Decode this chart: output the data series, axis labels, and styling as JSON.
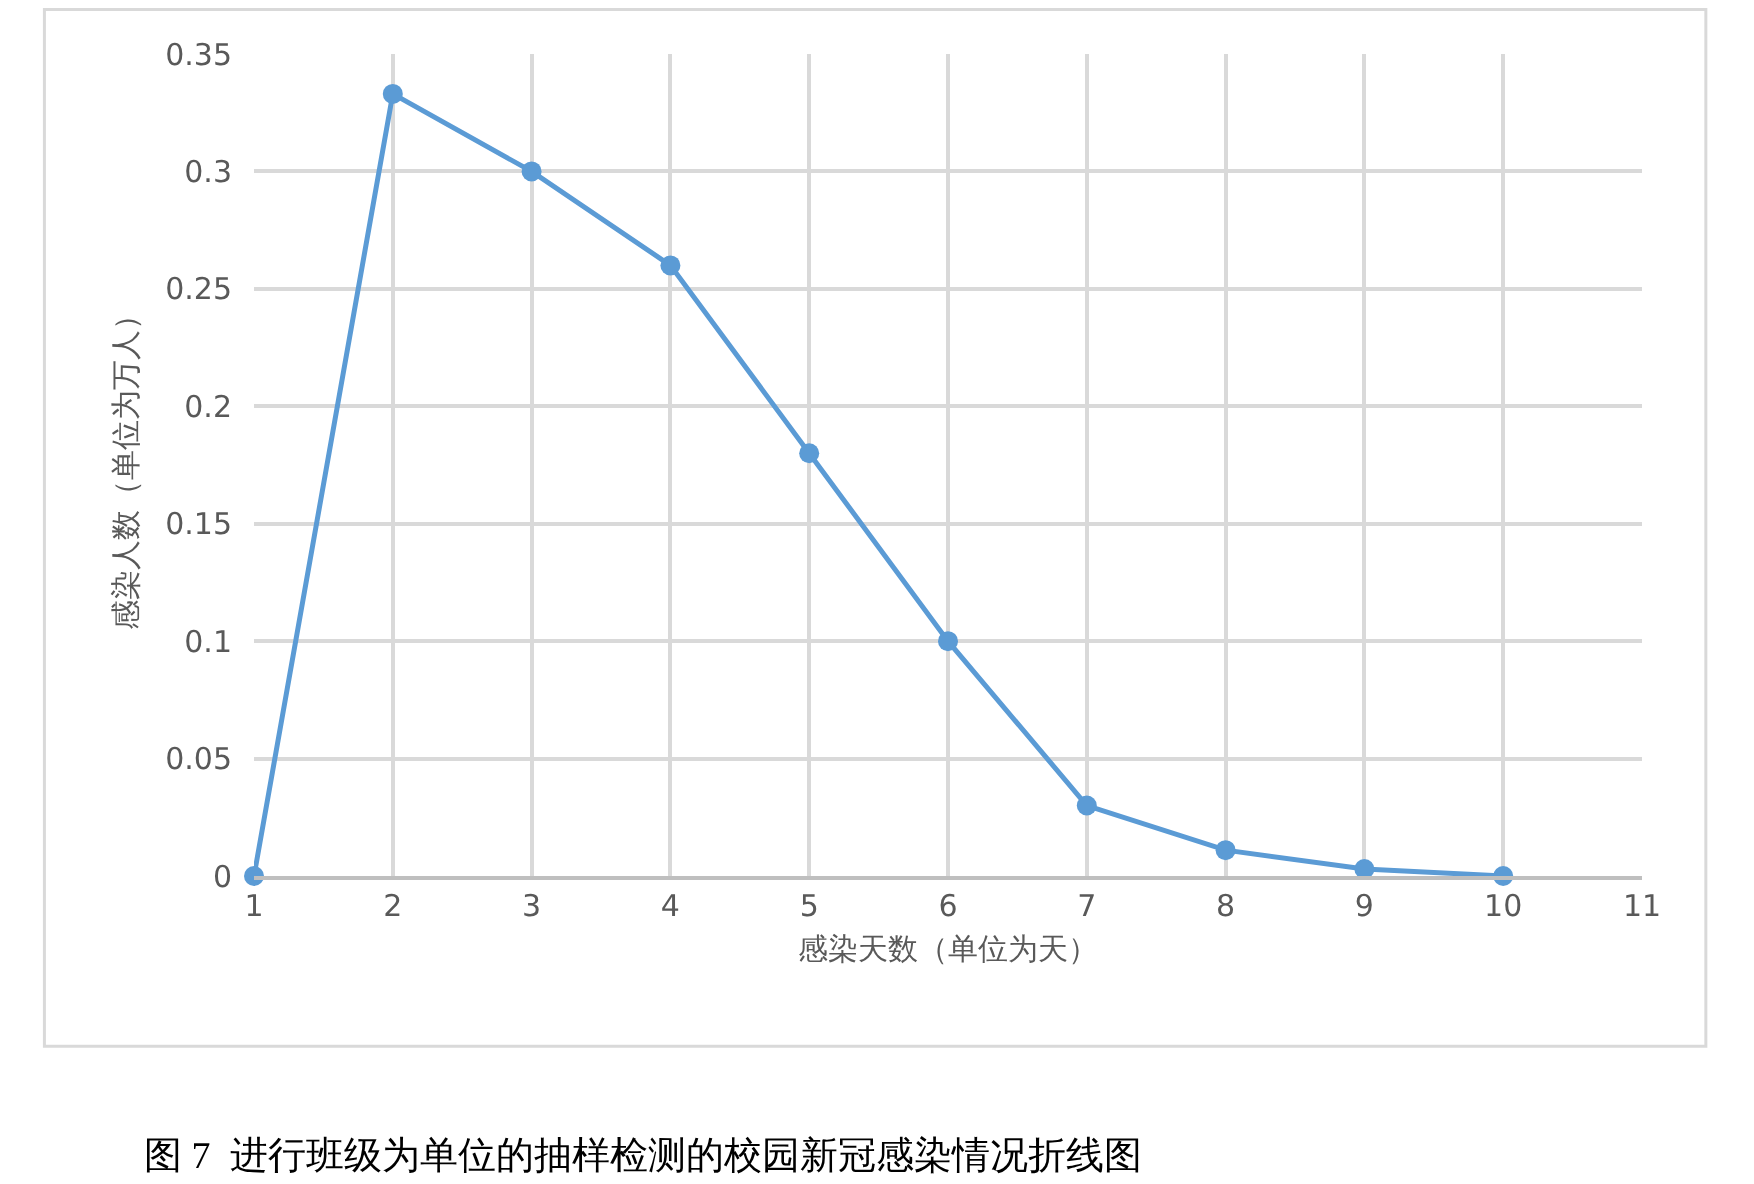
{
  "chart_data": {
    "type": "line",
    "xlabel": "感染天数（单位为天）",
    "ylabel": "感染人数（单位为万人）",
    "x": [
      1,
      2,
      3,
      4,
      5,
      6,
      7,
      8,
      9,
      10
    ],
    "series": [
      {
        "color": "#5b9bd5",
        "values": [
          0,
          0.333,
          0.3,
          0.26,
          0.18,
          0.1,
          0.03,
          0.011,
          0.003,
          0
        ]
      }
    ],
    "xlim": [
      1,
      11
    ],
    "xticks": [
      1,
      2,
      3,
      4,
      5,
      6,
      7,
      8,
      9,
      10,
      11
    ],
    "ylim": [
      0,
      0.35
    ],
    "yticks": [
      0,
      0.05,
      0.1,
      0.15,
      0.2,
      0.25,
      0.3,
      0.35
    ],
    "grid": true,
    "marker": "circle",
    "line_style": "solid",
    "annotations": [
      "图 7  进行班级为单位的抽样检测的校园新冠感染情况折线图"
    ]
  }
}
